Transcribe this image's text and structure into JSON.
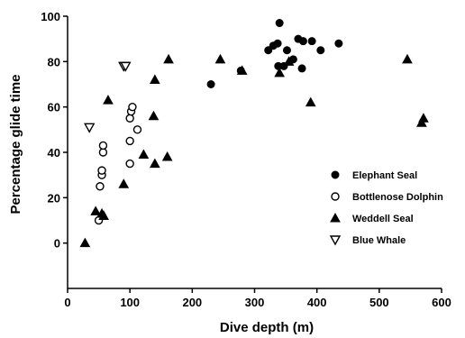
{
  "chart_data": {
    "type": "scatter",
    "title": "",
    "xlabel": "Dive depth (m)",
    "ylabel": "Percentage glide time",
    "xlim": [
      0,
      600
    ],
    "ylim": [
      -20,
      100
    ],
    "xticks": [
      0,
      100,
      200,
      300,
      400,
      500,
      600
    ],
    "yticks": [
      0,
      20,
      40,
      60,
      80,
      100
    ],
    "grid": false,
    "legend_position": "right",
    "series": [
      {
        "name": "Elephant Seal",
        "marker": "filled-circle",
        "color": "#000000",
        "points": [
          [
            230,
            70
          ],
          [
            278,
            76
          ],
          [
            322,
            85
          ],
          [
            330,
            87
          ],
          [
            337,
            88
          ],
          [
            340,
            97
          ],
          [
            338,
            78
          ],
          [
            347,
            78
          ],
          [
            352,
            85
          ],
          [
            362,
            81
          ],
          [
            370,
            90
          ],
          [
            378,
            89
          ],
          [
            376,
            77
          ],
          [
            392,
            89
          ],
          [
            406,
            85
          ],
          [
            435,
            88
          ]
        ]
      },
      {
        "name": "Bottlenose Dolphin",
        "marker": "open-circle",
        "color": "#000000",
        "points": [
          [
            50,
            10
          ],
          [
            52,
            25
          ],
          [
            55,
            30
          ],
          [
            55,
            32
          ],
          [
            57,
            40
          ],
          [
            57,
            43
          ],
          [
            100,
            35
          ],
          [
            100,
            45
          ],
          [
            100,
            55
          ],
          [
            102,
            58
          ],
          [
            104,
            60
          ],
          [
            112,
            50
          ]
        ]
      },
      {
        "name": "Weddell Seal",
        "marker": "filled-triangle",
        "color": "#000000",
        "points": [
          [
            28,
            0
          ],
          [
            45,
            14
          ],
          [
            55,
            13
          ],
          [
            58,
            12
          ],
          [
            65,
            63
          ],
          [
            90,
            26
          ],
          [
            122,
            39
          ],
          [
            138,
            56
          ],
          [
            140,
            35
          ],
          [
            140,
            72
          ],
          [
            160,
            38
          ],
          [
            162,
            81
          ],
          [
            245,
            81
          ],
          [
            280,
            76
          ],
          [
            340,
            75
          ],
          [
            355,
            80
          ],
          [
            390,
            62
          ],
          [
            545,
            81
          ],
          [
            568,
            53
          ],
          [
            571,
            55
          ]
        ]
      },
      {
        "name": "Blue Whale",
        "marker": "open-inverted-triangle",
        "color": "#000000",
        "points": [
          [
            35,
            51
          ],
          [
            90,
            78
          ],
          [
            93,
            78
          ]
        ]
      }
    ]
  }
}
